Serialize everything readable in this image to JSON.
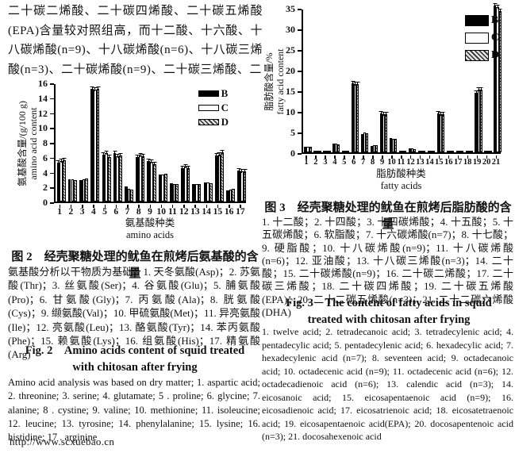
{
  "page": {
    "intro_text": "二十碳二烯酸、二十碳四烯酸、二十碳五烯酸(EPA)含量较对照组高，而十二酸、十六酸、十八碳烯酸(n=9)、十八碳烯酸(n=6)、十八碳三烯酸(n=3)、二十碳烯酸(n=9)、二十碳三烯酸、二",
    "footer_url": "http://www.scxuebao.cn"
  },
  "fig2": {
    "zh_title": "图 2　经壳聚糖处理的鱿鱼在煎烤后氨基酸的含量",
    "zh_note": "氨基酸分析以干物质为基础：1. 天冬氨酸(Asp)；2. 苏氨酸(Thr)；3. 丝氨酸(Ser)；4. 谷氨酸(Glu)；5. 脯氨酸(Pro)；6. 甘氨酸(Gly)；7. 丙氨酸(Ala)；8. 胱氨酸(Cys)；9. 缬氨酸(Val)；10. 甲硫氨酸(Met)；11. 异亮氨酸(Ile)；12. 亮氨酸(Leu)；13. 酪氨酸(Tyr)；14. 苯丙氨酸(Phe)；15. 赖氨酸(Lys)；16. 组氨酸(His)；17. 精氨酸(Arg)",
    "en_title": "Fig. 2　Amino acids content of squid treated with chitosan after frying",
    "en_note": "Amino acid analysis was based on dry matter; 1. aspartic acid; 2. threonine; 3. serine; 4. glutamate; 5 . proline; 6. glycine; 7. alanine; 8 . cystine; 9. valine; 10. methionine; 11. isoleucine; 12. leucine; 13. tyrosine; 14. phenylalanine; 15. lysine; 16. histidine; 17 . arginine"
  },
  "fig3": {
    "zh_title": "图 3　经壳聚糖处理的鱿鱼在煎烤后脂肪酸的含量",
    "zh_note": "1. 十二酸；2. 十四酸；3. 十四碳烯酸；4. 十五酸；5. 十五碳烯酸；6. 软脂酸；7. 十六碳烯酸(n=7)；8. 十七酸；9. 硬脂酸；10. 十八碳烯酸(n=9)；11. 十八碳烯酸(n=6)；12. 亚油酸；13. 十八碳三烯酸(n=3)；14. 二十酸；15. 二十碳烯酸(n=9)；16. 二十碳二烯酸；17. 二十碳三烯酸；18. 二十碳四烯酸；19. 二十碳五烯酸(EPA)；20. 二十二碳五烯酸(n=3)；21. 二十二碳六烯酸(DHA)",
    "en_title": "Fig. 3　The content of fatty acids in squid treated with chitosan after frying",
    "en_note": "1. twelve acid; 2. tetradecanoic acid; 3. tetradecylenic acid; 4. pentadecylic acid; 5. pentadecylenic acid; 6. hexadecylic acid; 7. hexadecylenic acid (n=7); 8. seventeen acid; 9. octadecanoic acid; 10. octadecenic acid (n=9); 11. octadecenic acid (n=6); 12. octadecadienoic acid (n=6); 13. calendic acid (n=3); 14. eicosanoic acid; 15. eicosapentaenoic acid (n=9); 16. eicosadienoic acid; 17. eicosatrienoic acid; 18. eicosatetraenoic acid; 19. eicosapentaenoic acid(EPA); 20. docosapentenoic acid (n=3); 21. docosahexenoic acid"
  },
  "chart_data": [
    {
      "type": "bar",
      "title": "",
      "categories": [
        "1",
        "2",
        "3",
        "4",
        "5",
        "6",
        "7",
        "8",
        "9",
        "10",
        "11",
        "12",
        "13",
        "14",
        "15",
        "16",
        "17"
      ],
      "series": [
        {
          "name": "B",
          "values": [
            5.2,
            3.0,
            2.9,
            15.1,
            6.3,
            6.5,
            2.0,
            6.0,
            5.4,
            3.6,
            2.5,
            4.5,
            2.4,
            2.6,
            6.2,
            1.5,
            4.2
          ]
        },
        {
          "name": "C",
          "values": [
            5.4,
            3.0,
            3.0,
            15.0,
            6.5,
            6.1,
            1.7,
            6.2,
            5.3,
            3.6,
            2.4,
            4.7,
            2.3,
            2.6,
            6.3,
            1.6,
            4.1
          ]
        },
        {
          "name": "D",
          "values": [
            5.5,
            2.9,
            3.1,
            15.1,
            6.0,
            6.2,
            1.6,
            6.1,
            5.0,
            3.7,
            2.4,
            4.5,
            2.3,
            2.5,
            6.6,
            1.7,
            4.1
          ]
        }
      ],
      "ylabel_zh": "氨基酸含量/(g/100 g)",
      "ylabel_en": "amino acid content",
      "xlabel_zh": "氨基酸种类",
      "xlabel_en": "amino acids",
      "ylim": [
        0,
        16
      ],
      "ytick_step": 2,
      "legend": [
        "B",
        "C",
        "D"
      ],
      "legend_position": "top-right",
      "grid": false,
      "error_bars": "small caps on taller bars"
    },
    {
      "type": "bar",
      "title": "",
      "categories": [
        "1",
        "2",
        "3",
        "4",
        "5",
        "6",
        "7",
        "8",
        "9",
        "10",
        "11",
        "12",
        "13",
        "14",
        "15",
        "16",
        "17",
        "18",
        "19",
        "20",
        "21"
      ],
      "series": [
        {
          "name": "B",
          "values": [
            1.3,
            0.1,
            0.4,
            2.1,
            0.1,
            16.8,
            4.5,
            1.5,
            9.4,
            3.4,
            0.1,
            0.9,
            0.1,
            0.1,
            9.4,
            0.1,
            0.3,
            0.1,
            14.4,
            0.4,
            35.6
          ]
        },
        {
          "name": "C",
          "values": [
            1.3,
            0.1,
            0.4,
            2.1,
            0.1,
            16.6,
            4.8,
            1.7,
            9.3,
            3.3,
            0.1,
            0.9,
            0.1,
            0.1,
            9.3,
            0.1,
            0.3,
            0.1,
            15.2,
            0.4,
            35.2
          ]
        },
        {
          "name": "D",
          "values": [
            1.3,
            0.1,
            0.4,
            2.0,
            0.1,
            16.6,
            4.7,
            1.8,
            9.2,
            3.2,
            0.1,
            0.8,
            0.1,
            0.1,
            9.2,
            0.1,
            0.3,
            0.1,
            15.1,
            0.4,
            34.3
          ]
        }
      ],
      "ylabel_zh": "脂肪酸含量/%",
      "ylabel_en": "fatty acid content",
      "xlabel_zh": "脂肪酸种类",
      "xlabel_en": "fatty acids",
      "ylim": [
        0,
        35
      ],
      "ytick_step": 5,
      "legend": [
        "B",
        "C",
        "D"
      ],
      "legend_position": "top-right",
      "grid": false,
      "error_bars": "small caps on taller bars"
    }
  ]
}
